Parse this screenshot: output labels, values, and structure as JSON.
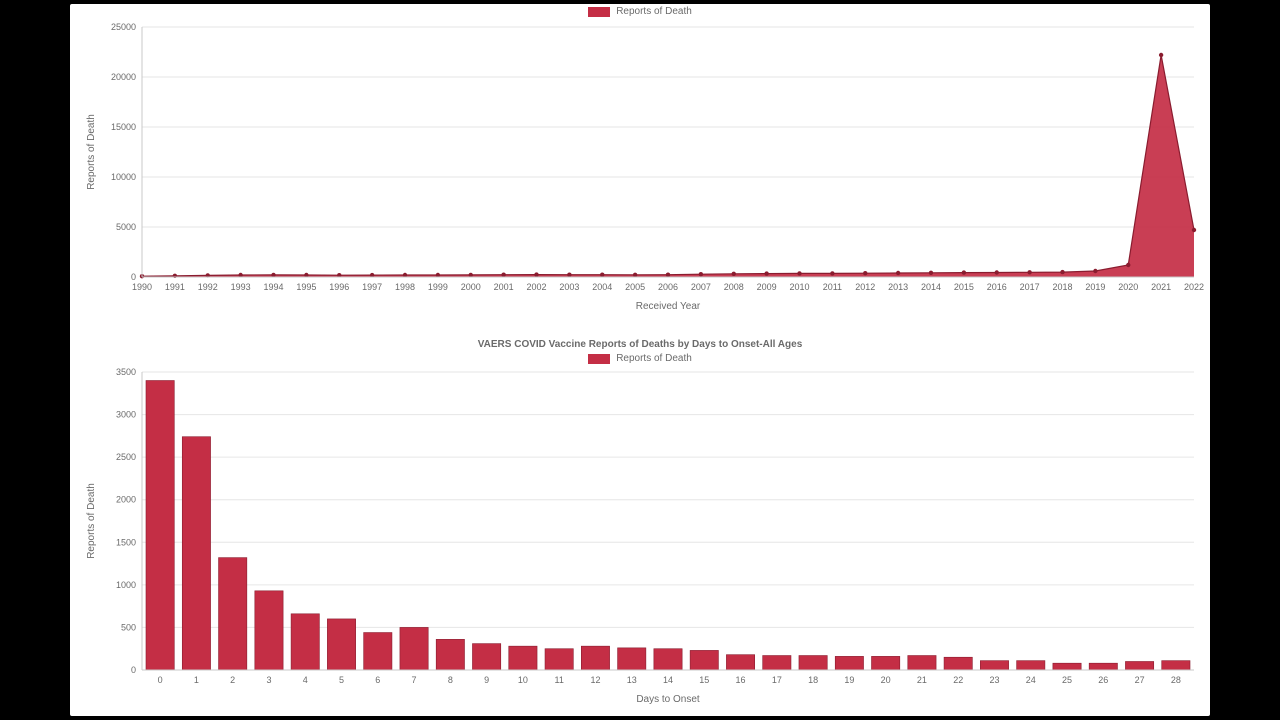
{
  "colors": {
    "background_page": "#000000",
    "panel": "#ffffff",
    "series": "#c42e45",
    "series_dark": "#8a1c2f",
    "grid": "#e6e6e6",
    "axis": "#c8c8c8",
    "text": "#6a6a6a"
  },
  "chart1": {
    "type": "area-with-markers",
    "legend_label": "Reports of Death",
    "ylabel": "Reports of Death",
    "xlabel": "Received Year",
    "years": [
      1990,
      1991,
      1992,
      1993,
      1994,
      1995,
      1996,
      1997,
      1998,
      1999,
      2000,
      2001,
      2002,
      2003,
      2004,
      2005,
      2006,
      2007,
      2008,
      2009,
      2010,
      2011,
      2012,
      2013,
      2014,
      2015,
      2016,
      2017,
      2018,
      2019,
      2020,
      2021,
      2022
    ],
    "values": [
      80,
      120,
      160,
      200,
      210,
      200,
      180,
      190,
      200,
      200,
      210,
      230,
      240,
      230,
      230,
      220,
      230,
      280,
      320,
      340,
      360,
      360,
      380,
      400,
      420,
      440,
      450,
      470,
      490,
      600,
      1200,
      22200,
      4700
    ],
    "yticks": [
      0,
      5000,
      10000,
      15000,
      20000,
      25000
    ],
    "ylim": [
      0,
      25000
    ],
    "marker_radius": 2.2,
    "line_width": 1.2,
    "fill_opacity": 0.92,
    "label_fontsize": 9,
    "axis_title_fontsize": 10
  },
  "chart2": {
    "type": "bar",
    "title": "VAERS COVID Vaccine Reports of Deaths by Days to Onset-All Ages",
    "legend_label": "Reports of Death",
    "ylabel": "Reports of Death",
    "xlabel": "Days to Onset",
    "categories": [
      0,
      1,
      2,
      3,
      4,
      5,
      6,
      7,
      8,
      9,
      10,
      11,
      12,
      13,
      14,
      15,
      16,
      17,
      18,
      19,
      20,
      21,
      22,
      23,
      24,
      25,
      26,
      27,
      28
    ],
    "values": [
      3400,
      2740,
      1320,
      930,
      660,
      600,
      440,
      500,
      360,
      310,
      280,
      250,
      280,
      260,
      250,
      230,
      180,
      170,
      170,
      160,
      160,
      170,
      150,
      110,
      110,
      80,
      80,
      100,
      110
    ],
    "yticks": [
      0,
      500,
      1000,
      1500,
      2000,
      2500,
      3000,
      3500
    ],
    "ylim": [
      0,
      3500
    ],
    "bar_width_ratio": 0.78,
    "label_fontsize": 9,
    "axis_title_fontsize": 10
  }
}
